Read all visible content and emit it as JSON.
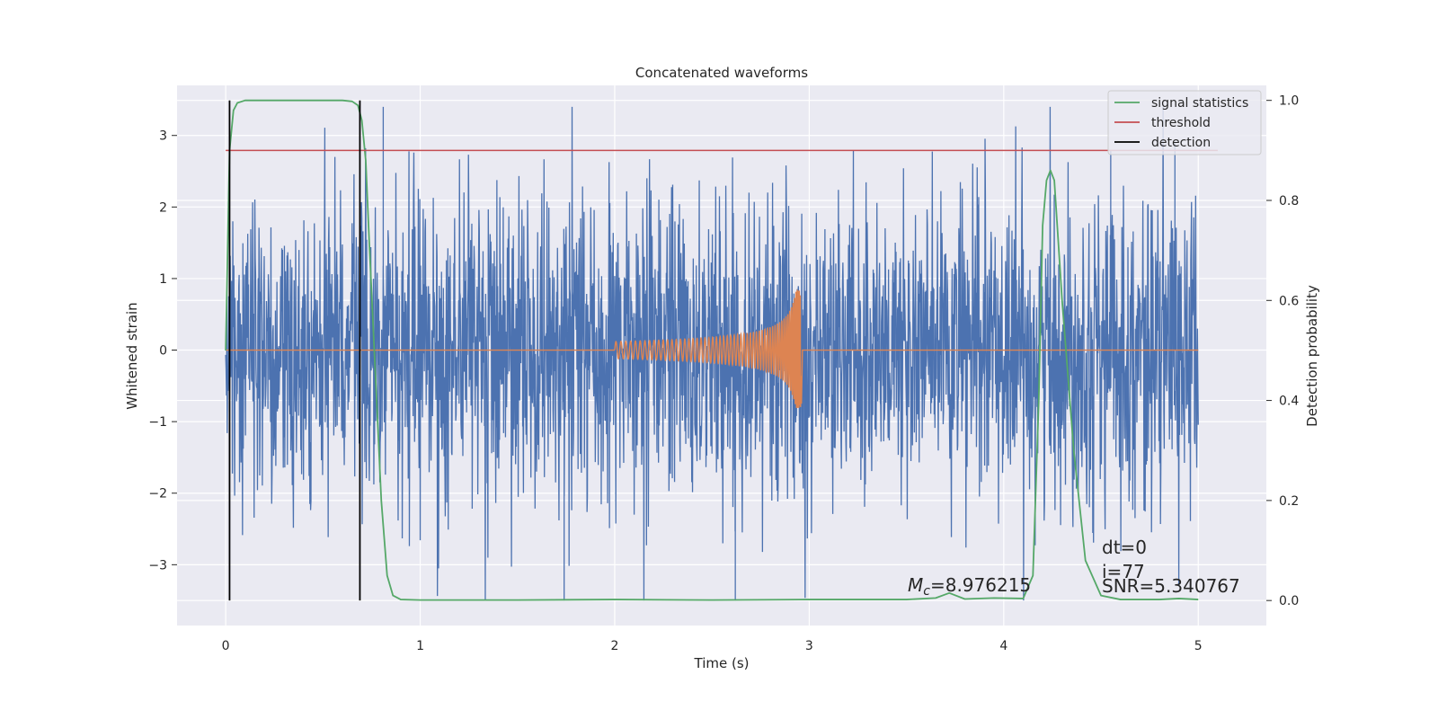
{
  "chart_data": {
    "type": "line",
    "title": "Concatenated waveforms",
    "xlabel": "Time (s)",
    "ylabel_left": "Whitened strain",
    "ylabel_right": "Detection probability",
    "xlim": [
      -0.25,
      5.35
    ],
    "ylim_left": [
      -3.85,
      3.7
    ],
    "ylim_right": [
      -0.05,
      1.03
    ],
    "x_ticks": [
      0,
      1,
      2,
      3,
      4,
      5
    ],
    "x_tick_labels": [
      "0",
      "1",
      "2",
      "3",
      "4",
      "5"
    ],
    "y_left_ticks": [
      -3,
      -2,
      -1,
      0,
      1,
      2,
      3
    ],
    "y_left_tick_labels": [
      "−3",
      "−2",
      "−1",
      "0",
      "1",
      "2",
      "3"
    ],
    "y_right_ticks": [
      0.0,
      0.2,
      0.4,
      0.6,
      0.8,
      1.0
    ],
    "y_right_tick_labels": [
      "0.0",
      "0.2",
      "0.4",
      "0.6",
      "0.8",
      "1.0"
    ],
    "grid": true,
    "legend_position": "top-right",
    "colors": {
      "background": "#eaeaf2",
      "grid": "#ffffff",
      "strain": "#4c72b0",
      "template": "#dd8452",
      "signal_statistics": "#55a868",
      "threshold": "#c44e52",
      "detection": "#000000"
    },
    "series": [
      {
        "name": "signal statistics",
        "axis": "right",
        "x": [
          0.0,
          0.02,
          0.04,
          0.06,
          0.1,
          0.2,
          0.4,
          0.6,
          0.65,
          0.68,
          0.7,
          0.72,
          0.74,
          0.77,
          0.8,
          0.83,
          0.86,
          0.9,
          1.0,
          1.5,
          2.0,
          2.5,
          3.0,
          3.5,
          3.65,
          3.72,
          3.8,
          3.95,
          4.1,
          4.15,
          4.18,
          4.2,
          4.22,
          4.24,
          4.26,
          4.3,
          4.36,
          4.42,
          4.5,
          4.6,
          4.8,
          4.9,
          5.0
        ],
        "y": [
          0.5,
          0.9,
          0.98,
          0.995,
          1.0,
          1.0,
          1.0,
          1.0,
          0.998,
          0.99,
          0.96,
          0.88,
          0.7,
          0.45,
          0.2,
          0.05,
          0.01,
          0.002,
          0.001,
          0.001,
          0.002,
          0.001,
          0.002,
          0.002,
          0.005,
          0.015,
          0.003,
          0.005,
          0.004,
          0.05,
          0.4,
          0.75,
          0.84,
          0.86,
          0.84,
          0.6,
          0.3,
          0.08,
          0.01,
          0.002,
          0.002,
          0.004,
          0.002
        ]
      },
      {
        "name": "threshold",
        "axis": "right",
        "x": [
          0.0,
          5.1
        ],
        "y": [
          0.9,
          0.9
        ]
      },
      {
        "name": "detection",
        "axis": "right",
        "segments": [
          {
            "x": 0.02,
            "y": [
              0.0,
              1.0
            ]
          },
          {
            "x": 0.69,
            "y": [
              0.0,
              1.0
            ]
          }
        ]
      },
      {
        "axis": "left",
        "kind": "strain",
        "x_range": [
          0,
          5
        ],
        "envelope": [
          -3.5,
          3.4
        ],
        "notable_spikes": [
          {
            "x": 0.81,
            "y": 3.4
          },
          {
            "x": 1.74,
            "y": -3.5
          },
          {
            "x": 2.62,
            "y": -3.5
          },
          {
            "x": 4.55,
            "y": 2.8
          },
          {
            "x": 4.88,
            "y": 2.9
          }
        ]
      },
      {
        "axis": "left",
        "kind": "template",
        "x_range": [
          0,
          5
        ],
        "chirp_start": 2.0,
        "chirp_end": 2.96,
        "amplitude_start": 0.12,
        "amplitude_peak": 0.85
      }
    ],
    "annotations": {
      "mc_symbol": "M",
      "mc_subscript": "c",
      "mc_value": "=8.976215",
      "dt": "dt=0",
      "i": "i=77",
      "snr": "SNR=5.340767"
    }
  }
}
